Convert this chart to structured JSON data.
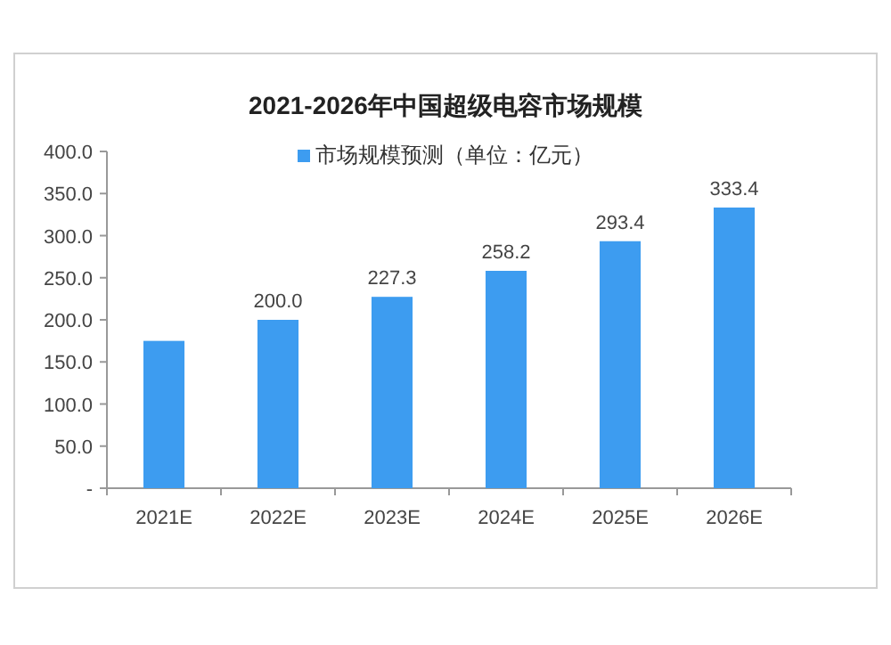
{
  "chart_data": {
    "type": "bar",
    "title": "2021-2026年中国超级电容市场规模",
    "categories": [
      "2021E",
      "2022E",
      "2023E",
      "2024E",
      "2025E",
      "2026E"
    ],
    "series": [
      {
        "name": "市场规模预测（单位：亿元）",
        "color": "#3d9cf0",
        "values": [
          175,
          200.0,
          227.3,
          258.2,
          293.4,
          333.4
        ],
        "value_labels": [
          null,
          "200.0",
          "227.3",
          "258.2",
          "293.4",
          "333.4"
        ]
      }
    ],
    "ylim": [
      0,
      400
    ],
    "yticks": [
      {
        "value": 0,
        "label": "-"
      },
      {
        "value": 50,
        "label": "50.0"
      },
      {
        "value": 100,
        "label": "100.0"
      },
      {
        "value": 150,
        "label": "150.0"
      },
      {
        "value": 200,
        "label": "200.0"
      },
      {
        "value": 250,
        "label": "250.0"
      },
      {
        "value": 300,
        "label": "300.0"
      },
      {
        "value": 350,
        "label": "350.0"
      },
      {
        "value": 400,
        "label": "400.0"
      }
    ],
    "grid": false,
    "legend": "top"
  }
}
